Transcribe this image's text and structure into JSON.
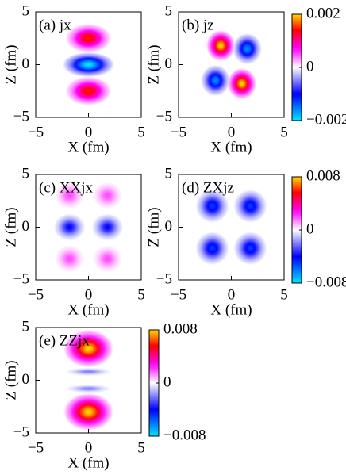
{
  "chart_data": [
    {
      "type": "heatmap",
      "title": "(a) jx",
      "xlabel": "X  (fm)",
      "ylabel": "Z  (fm)",
      "xlim": [
        -5,
        5
      ],
      "ylim": [
        -5,
        5
      ],
      "xticks": [
        {
          "value": -5,
          "label": "−5"
        },
        0,
        5
      ],
      "yticks": [
        {
          "value": -5,
          "label": "−5"
        },
        0,
        5
      ],
      "clim": [
        -0.002,
        0.002
      ],
      "lobes": [
        {
          "x": 0,
          "z": 2.5,
          "rx": 2.2,
          "rz": 1.4,
          "value": 0.0015
        },
        {
          "x": 0,
          "z": 0,
          "rx": 2.5,
          "rz": 1.2,
          "value": -0.002
        },
        {
          "x": 0,
          "z": -2.5,
          "rx": 2.2,
          "rz": 1.4,
          "value": 0.0015
        }
      ]
    },
    {
      "type": "heatmap",
      "title": "(b) jz",
      "xlabel": "X  (fm)",
      "ylabel": "Z  (fm)",
      "xlim": [
        -5,
        5
      ],
      "ylim": [
        -5,
        5
      ],
      "xticks": [
        {
          "value": -5,
          "label": "−5"
        },
        0,
        5
      ],
      "yticks": [
        {
          "value": -5,
          "label": "−5"
        },
        0,
        5
      ],
      "clim": [
        -0.002,
        0.002
      ],
      "cticks": [
        {
          "value": -0.002,
          "label": "−0.002"
        },
        0,
        0.002
      ],
      "lobes": [
        {
          "x": -1.0,
          "z": 1.8,
          "rx": 1.4,
          "rz": 1.5,
          "value": 0.002
        },
        {
          "x": 1.5,
          "z": 1.5,
          "rx": 1.4,
          "rz": 1.5,
          "value": -0.0016
        },
        {
          "x": -1.5,
          "z": -1.5,
          "rx": 1.4,
          "rz": 1.5,
          "value": -0.0016
        },
        {
          "x": 1.0,
          "z": -1.8,
          "rx": 1.4,
          "rz": 1.5,
          "value": 0.002
        }
      ]
    },
    {
      "type": "heatmap",
      "title": "(c) XXjx",
      "xlabel": "X  (fm)",
      "ylabel": "Z  (fm)",
      "xlim": [
        -5,
        5
      ],
      "ylim": [
        -5,
        5
      ],
      "xticks": [
        {
          "value": -5,
          "label": "−5"
        },
        0,
        5
      ],
      "yticks": [
        {
          "value": -5,
          "label": "−5"
        },
        0,
        5
      ],
      "clim": [
        -0.008,
        0.008
      ],
      "lobes": [
        {
          "x": -1.8,
          "z": 3,
          "rx": 1.4,
          "rz": 1.3,
          "value": 0.002
        },
        {
          "x": 1.8,
          "z": 3,
          "rx": 1.4,
          "rz": 1.3,
          "value": 0.002
        },
        {
          "x": -1.8,
          "z": 0,
          "rx": 1.5,
          "rz": 1.3,
          "value": -0.004
        },
        {
          "x": 1.8,
          "z": 0,
          "rx": 1.5,
          "rz": 1.3,
          "value": -0.004
        },
        {
          "x": -1.8,
          "z": -3,
          "rx": 1.4,
          "rz": 1.3,
          "value": 0.002
        },
        {
          "x": 1.8,
          "z": -3,
          "rx": 1.4,
          "rz": 1.3,
          "value": 0.002
        }
      ]
    },
    {
      "type": "heatmap",
      "title": "(d) ZXjz",
      "xlabel": "X  (fm)",
      "ylabel": "Z  (fm)",
      "xlim": [
        -5,
        5
      ],
      "ylim": [
        -5,
        5
      ],
      "xticks": [
        {
          "value": -5,
          "label": "−5"
        },
        0,
        5
      ],
      "yticks": [
        {
          "value": -5,
          "label": "−5"
        },
        0,
        5
      ],
      "clim": [
        -0.008,
        0.008
      ],
      "cticks": [
        {
          "value": -0.008,
          "label": "−0.008"
        },
        0,
        0.008
      ],
      "lobes": [
        {
          "x": -1.8,
          "z": 2,
          "rx": 1.6,
          "rz": 1.6,
          "value": -0.005
        },
        {
          "x": 1.8,
          "z": 2,
          "rx": 1.6,
          "rz": 1.6,
          "value": -0.005
        },
        {
          "x": -1.8,
          "z": -2,
          "rx": 1.6,
          "rz": 1.6,
          "value": -0.005
        },
        {
          "x": 1.8,
          "z": -2,
          "rx": 1.6,
          "rz": 1.6,
          "value": -0.005
        }
      ]
    },
    {
      "type": "heatmap",
      "title": "(e) ZZjx",
      "xlabel": "X  (fm)",
      "ylabel": "Z  (fm)",
      "xlim": [
        -5,
        5
      ],
      "ylim": [
        -5,
        5
      ],
      "xticks": [
        {
          "value": -5,
          "label": "−5"
        },
        0,
        5
      ],
      "yticks": [
        {
          "value": -5,
          "label": "−5"
        },
        0,
        5
      ],
      "clim": [
        -0.008,
        0.008
      ],
      "cticks": [
        {
          "value": -0.008,
          "label": "−0.008"
        },
        0,
        0.008
      ],
      "lobes": [
        {
          "x": 0,
          "z": 3,
          "rx": 2.4,
          "rz": 1.8,
          "value": 0.008
        },
        {
          "x": 0,
          "z": 0.8,
          "rx": 2.2,
          "rz": 0.4,
          "value": -0.002
        },
        {
          "x": 0,
          "z": -0.8,
          "rx": 2.2,
          "rz": 0.4,
          "value": -0.002
        },
        {
          "x": 0,
          "z": -3,
          "rx": 2.4,
          "rz": 1.8,
          "value": 0.008
        }
      ]
    }
  ]
}
